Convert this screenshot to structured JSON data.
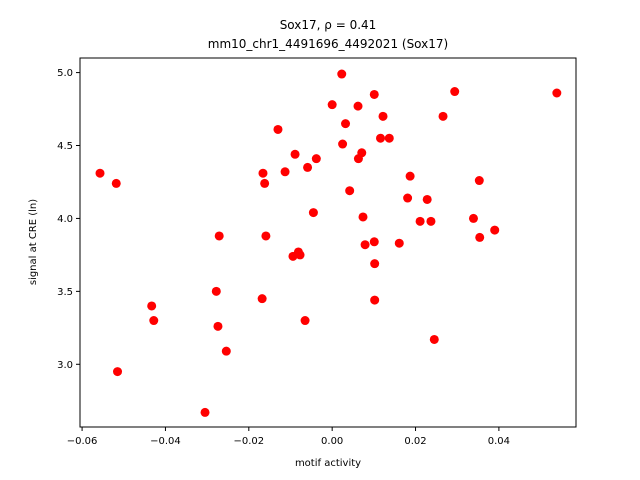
{
  "chart_data": {
    "type": "scatter",
    "title_line1": "Sox17, ρ = 0.41",
    "title_line2": "mm10_chr1_4491696_4492021 (Sox17)",
    "xlabel": "motif activity",
    "ylabel": "signal at CRE (ln)",
    "xlim": [
      -0.0605,
      0.0585
    ],
    "ylim": [
      2.57,
      5.1
    ],
    "xticks": [
      -0.06,
      -0.04,
      -0.02,
      0.0,
      0.02,
      0.04
    ],
    "xtick_labels": [
      "−0.06",
      "−0.04",
      "−0.02",
      "0.00",
      "0.02",
      "0.04"
    ],
    "yticks": [
      3.0,
      3.5,
      4.0,
      4.5,
      5.0
    ],
    "ytick_labels": [
      "3.0",
      "3.5",
      "4.0",
      "4.5",
      "5.0"
    ],
    "point_color": "#ff0000",
    "grid": false,
    "points": [
      {
        "x": -0.0557,
        "y": 4.31
      },
      {
        "x": -0.0518,
        "y": 4.24
      },
      {
        "x": -0.0515,
        "y": 2.95
      },
      {
        "x": -0.0433,
        "y": 3.4
      },
      {
        "x": -0.0428,
        "y": 3.3
      },
      {
        "x": -0.0305,
        "y": 2.67
      },
      {
        "x": -0.0278,
        "y": 3.5
      },
      {
        "x": -0.0274,
        "y": 3.26
      },
      {
        "x": -0.0271,
        "y": 3.88
      },
      {
        "x": -0.0254,
        "y": 3.09
      },
      {
        "x": -0.0168,
        "y": 3.45
      },
      {
        "x": -0.0166,
        "y": 4.31
      },
      {
        "x": -0.0162,
        "y": 4.24
      },
      {
        "x": -0.0159,
        "y": 3.88
      },
      {
        "x": -0.013,
        "y": 4.61
      },
      {
        "x": -0.0113,
        "y": 4.32
      },
      {
        "x": -0.0094,
        "y": 3.74
      },
      {
        "x": -0.0089,
        "y": 4.44
      },
      {
        "x": -0.0081,
        "y": 3.77
      },
      {
        "x": -0.0077,
        "y": 3.75
      },
      {
        "x": -0.0065,
        "y": 3.3
      },
      {
        "x": -0.0059,
        "y": 4.35
      },
      {
        "x": -0.0045,
        "y": 4.04
      },
      {
        "x": -0.0038,
        "y": 4.41
      },
      {
        "x": 0.0,
        "y": 4.78
      },
      {
        "x": 0.0023,
        "y": 4.99
      },
      {
        "x": 0.0025,
        "y": 4.51
      },
      {
        "x": 0.0032,
        "y": 4.65
      },
      {
        "x": 0.0042,
        "y": 4.19
      },
      {
        "x": 0.0062,
        "y": 4.77
      },
      {
        "x": 0.0063,
        "y": 4.41
      },
      {
        "x": 0.0071,
        "y": 4.45
      },
      {
        "x": 0.0074,
        "y": 4.01
      },
      {
        "x": 0.0079,
        "y": 3.82
      },
      {
        "x": 0.0101,
        "y": 4.85
      },
      {
        "x": 0.0101,
        "y": 3.84
      },
      {
        "x": 0.0102,
        "y": 3.69
      },
      {
        "x": 0.0102,
        "y": 3.44
      },
      {
        "x": 0.0116,
        "y": 4.55
      },
      {
        "x": 0.0122,
        "y": 4.7
      },
      {
        "x": 0.0137,
        "y": 4.55
      },
      {
        "x": 0.0161,
        "y": 3.83
      },
      {
        "x": 0.0181,
        "y": 4.14
      },
      {
        "x": 0.0187,
        "y": 4.29
      },
      {
        "x": 0.0211,
        "y": 3.98
      },
      {
        "x": 0.0228,
        "y": 4.13
      },
      {
        "x": 0.0237,
        "y": 3.98
      },
      {
        "x": 0.0245,
        "y": 3.17
      },
      {
        "x": 0.0266,
        "y": 4.7
      },
      {
        "x": 0.0294,
        "y": 4.87
      },
      {
        "x": 0.0339,
        "y": 4.0
      },
      {
        "x": 0.0353,
        "y": 4.26
      },
      {
        "x": 0.0354,
        "y": 3.87
      },
      {
        "x": 0.039,
        "y": 3.92
      },
      {
        "x": 0.0539,
        "y": 4.86
      }
    ]
  }
}
